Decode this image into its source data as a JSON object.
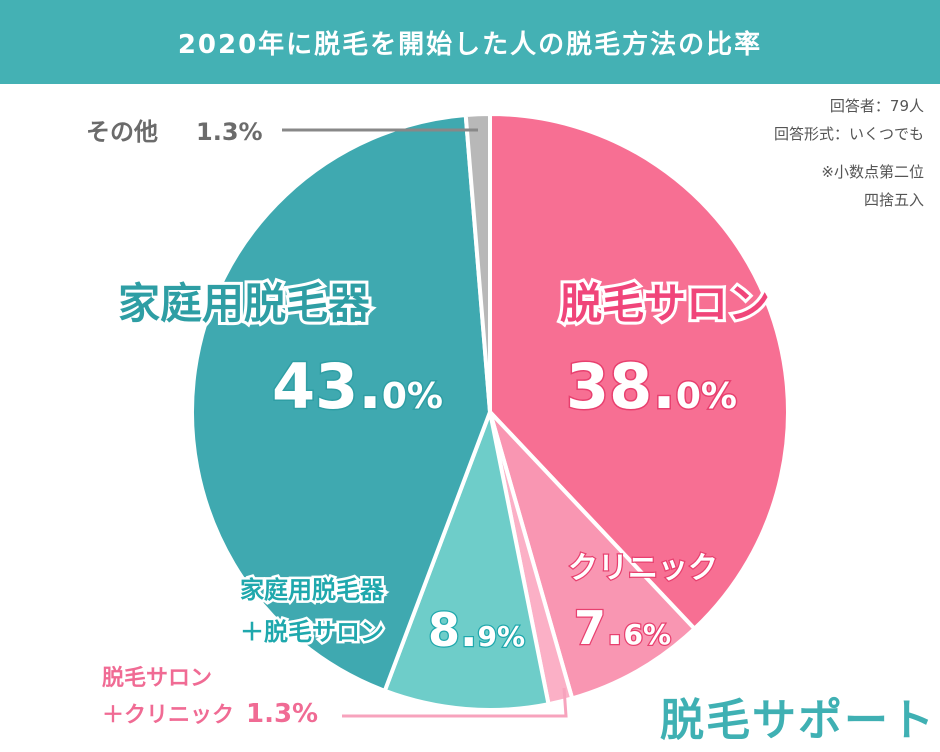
{
  "title": "2020年に脱毛を開始した人の脱毛方法の比率",
  "notes": {
    "respondents": "回答者：79人",
    "format": "回答形式：いくつでも",
    "rounding1": "※小数点第二位",
    "rounding2": "四捨五入"
  },
  "brand": "脱毛サポート",
  "colors": {
    "header": "#44b1b4",
    "salon": "#f76f93",
    "clinic": "#f996b2",
    "home": "#3fa9b0",
    "home_salon": "#6ecdc9",
    "salon_clinic": "#fbb0c6",
    "other": "#b8b8b8"
  },
  "chart_data": {
    "type": "pie",
    "title": "2020年に脱毛を開始した人の脱毛方法の比率",
    "slices": [
      {
        "label": "脱毛サロン",
        "value": 38.0,
        "display": "38.0%"
      },
      {
        "label": "クリニック",
        "value": 7.6,
        "display": "7.6%"
      },
      {
        "label": "脱毛サロン＋クリニック",
        "value": 1.3,
        "display": "1.3%"
      },
      {
        "label": "家庭用脱毛器＋脱毛サロン",
        "value": 8.9,
        "display": "8.9%"
      },
      {
        "label": "家庭用脱毛器",
        "value": 43.0,
        "display": "43.0%"
      },
      {
        "label": "その他",
        "value": 1.3,
        "display": "1.3%"
      }
    ]
  },
  "labels": {
    "home": {
      "name": "家庭用脱毛器",
      "big": "43.",
      "small": "0%"
    },
    "salon": {
      "name": "脱毛サロン",
      "big": "38.",
      "small": "0%"
    },
    "clinic": {
      "name": "クリニック",
      "big": "7.",
      "small": "6%"
    },
    "home_salon": {
      "line1": "家庭用脱毛器",
      "line2": "＋脱毛サロン",
      "big": "8.",
      "small": "9%"
    },
    "salon_clinic": {
      "line1": "脱毛サロン",
      "line2": "＋クリニック",
      "pct": "1.3%"
    },
    "other": {
      "name": "その他",
      "pct": "1.3%"
    }
  }
}
